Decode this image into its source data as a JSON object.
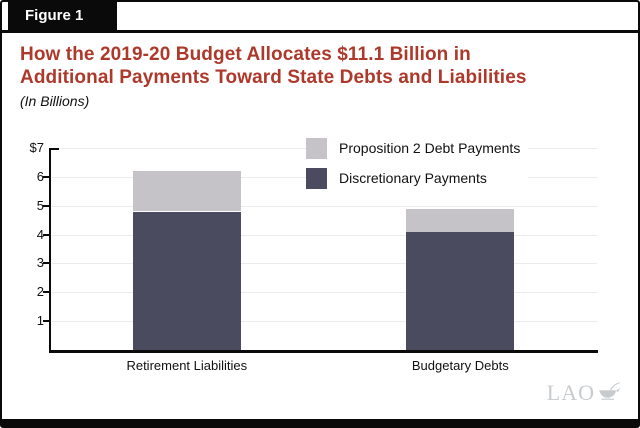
{
  "figure": {
    "label": "Figure 1"
  },
  "title": {
    "line1": "How the 2019-20 Budget Allocates $11.1 Billion in",
    "line2": "Additional Payments Toward State Debts and Liabilities",
    "subtitle": "(In Billions)"
  },
  "logo": {
    "text": "LAO"
  },
  "colors": {
    "accent_red": "#ad392b",
    "bar_dark": "#4b4b5f",
    "bar_light": "#c5c3c8",
    "gridline": "#ebebeb",
    "axis_black": "#0a0a0a",
    "logo_gray": "#c8cbce"
  },
  "chart_data": {
    "type": "bar",
    "stacked": true,
    "title": "How the 2019-20 Budget Allocates $11.1 Billion in Additional Payments Toward State Debts and Liabilities",
    "units_note": "In Billions",
    "categories": [
      "Retirement Liabilities",
      "Budgetary Debts"
    ],
    "series": [
      {
        "name": "Discretionary Payments",
        "values": [
          4.8,
          4.1
        ],
        "color": "#4b4b5f"
      },
      {
        "name": "Proposition 2 Debt Payments",
        "values": [
          1.4,
          0.8
        ],
        "color": "#c5c3c8"
      }
    ],
    "totals": [
      6.2,
      4.9
    ],
    "grand_total": 11.1,
    "ylim": [
      0,
      7
    ],
    "y_tick_labels": [
      "$7",
      "6",
      "5",
      "4",
      "3",
      "2",
      "1"
    ],
    "grid": true,
    "legend_position": "top-center-overlay",
    "legend_order": [
      "Proposition 2 Debt Payments",
      "Discretionary Payments"
    ]
  }
}
